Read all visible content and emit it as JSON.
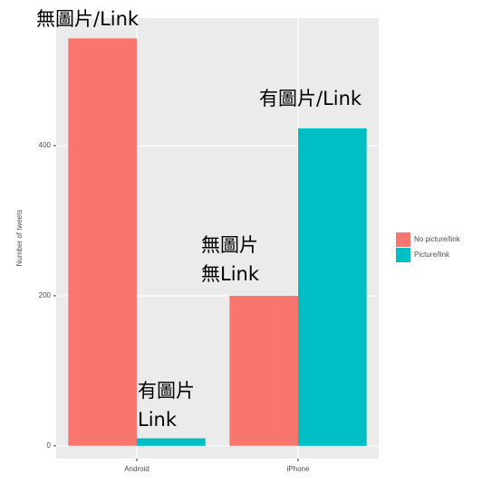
{
  "chart_data": {
    "type": "bar",
    "y_label": "Number of tweets",
    "categories": [
      "Android",
      "iPhone"
    ],
    "series": [
      {
        "name": "No picture/link",
        "color": "#F8766D",
        "values": [
          543,
          200
        ]
      },
      {
        "name": "Picture/link",
        "color": "#00BFC4",
        "values": [
          10,
          423
        ]
      }
    ],
    "ylim": [
      -17,
      570
    ],
    "yticks": [
      0,
      200,
      400
    ],
    "grid": true,
    "legend": "right",
    "annotations": [
      {
        "lines": [
          "無圖片/Link"
        ]
      },
      {
        "lines": [
          "有圖片/Link"
        ]
      },
      {
        "lines": [
          "無圖片",
          "無Link"
        ]
      },
      {
        "lines": [
          "有圖片",
          "Link"
        ]
      }
    ]
  }
}
